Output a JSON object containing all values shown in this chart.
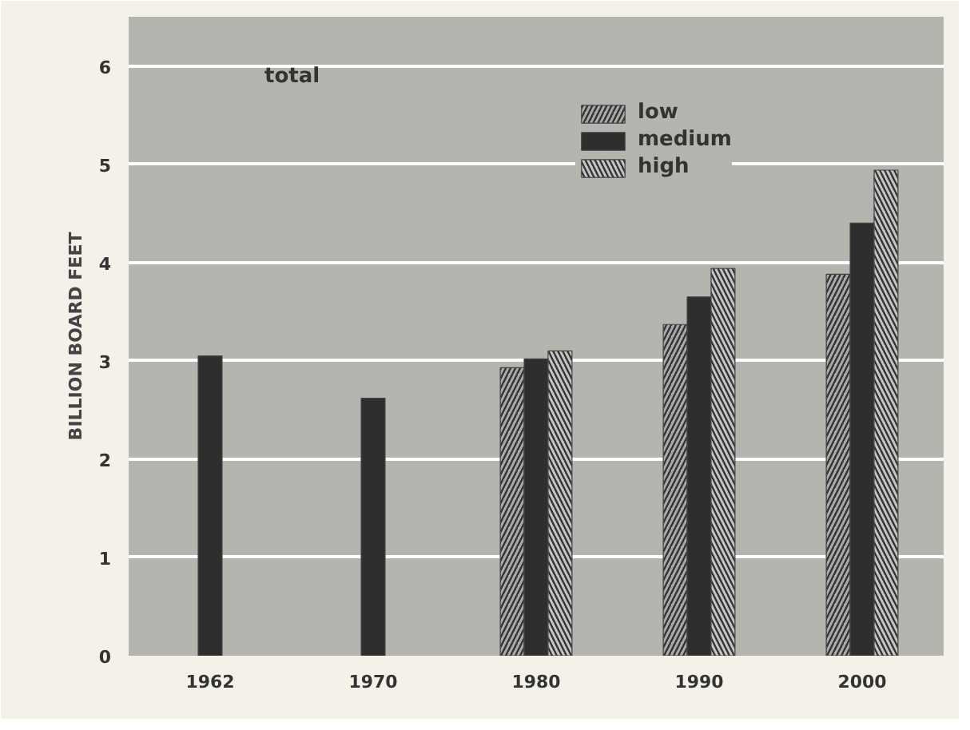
{
  "chart_data": {
    "type": "bar",
    "ylabel": "BILLION BOARD FEET",
    "categories": [
      "1962",
      "1970",
      "1980",
      "1990",
      "2000"
    ],
    "series": [
      {
        "name": "low",
        "color": "#a9a9a9",
        "values": [
          null,
          null,
          2.93,
          3.37,
          3.88
        ]
      },
      {
        "name": "medium",
        "color": "#2e2e2e",
        "values": [
          3.05,
          2.62,
          3.02,
          3.65,
          4.4
        ]
      },
      {
        "name": "high",
        "color": "#c4c4c4",
        "values": [
          null,
          null,
          3.1,
          3.94,
          4.94
        ]
      }
    ],
    "annotations": [
      "total"
    ],
    "ylim": [
      0,
      6.5
    ],
    "yticks": [
      0,
      1,
      2,
      3,
      4,
      5,
      6
    ],
    "grid": "y",
    "legend": "top"
  }
}
